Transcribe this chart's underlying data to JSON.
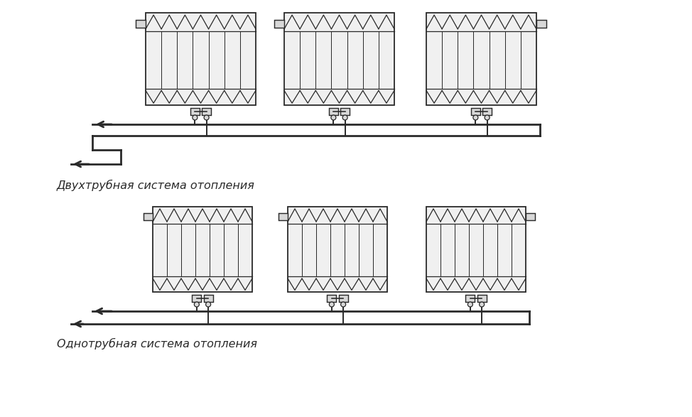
{
  "bg_color": "#ffffff",
  "line_color": "#2a2a2a",
  "fill_light": "#f0f0f0",
  "fill_gray": "#d8d8d8",
  "label1": "Двухтрубная система отопления",
  "label2": "Однотрубная система отопления",
  "label_fontsize": 11.5,
  "lw_main": 2.0,
  "lw_thin": 1.4,
  "lw_rad": 1.3
}
